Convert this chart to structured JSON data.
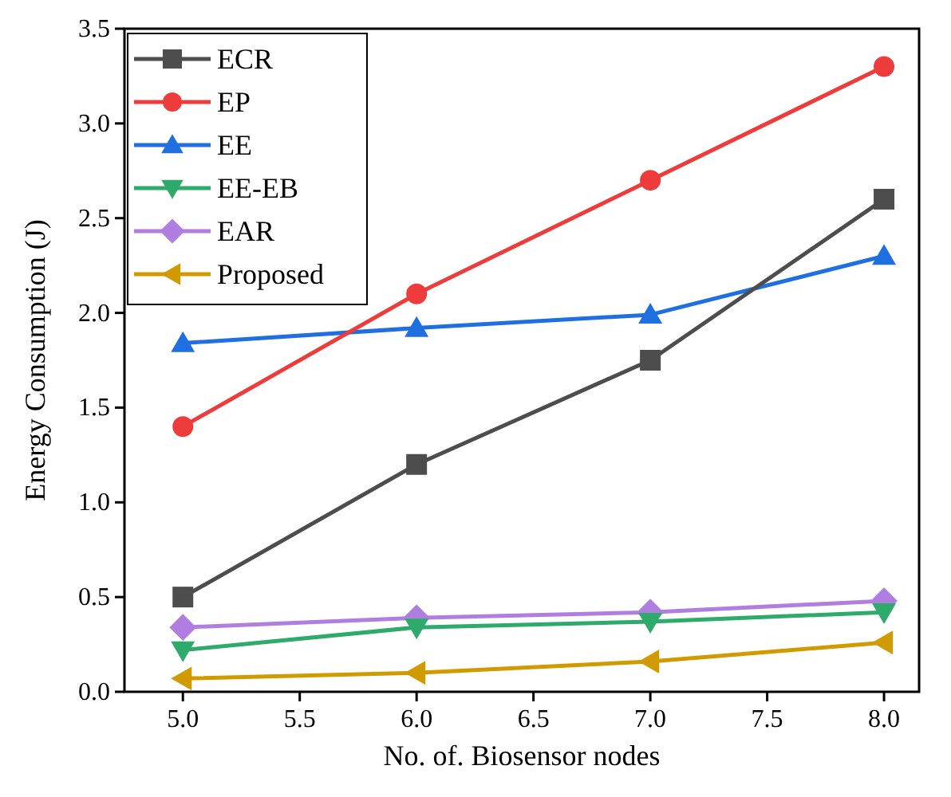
{
  "chart_data": {
    "type": "line",
    "xlabel": "No. of. Biosensor nodes",
    "ylabel": "Energy Consumption (J)",
    "x": [
      5,
      6,
      7,
      8
    ],
    "series": [
      {
        "name": "ECR",
        "color": "#4d4d4d",
        "marker": "square",
        "values": [
          0.5,
          1.2,
          1.75,
          2.6
        ]
      },
      {
        "name": "EP",
        "color": "#ee3b3b",
        "marker": "circle",
        "values": [
          1.4,
          2.1,
          2.7,
          3.3
        ]
      },
      {
        "name": "EE",
        "color": "#1f6fe0",
        "marker": "triangle",
        "values": [
          1.84,
          1.92,
          1.99,
          2.3
        ]
      },
      {
        "name": "EE-EB",
        "color": "#2eaa6a",
        "marker": "triangle-down",
        "values": [
          0.22,
          0.34,
          0.37,
          0.42
        ]
      },
      {
        "name": "EAR",
        "color": "#b07ee0",
        "marker": "diamond",
        "values": [
          0.34,
          0.39,
          0.42,
          0.48
        ]
      },
      {
        "name": "Proposed",
        "color": "#d09a00",
        "marker": "triangle-left",
        "values": [
          0.07,
          0.1,
          0.16,
          0.26
        ]
      }
    ],
    "xlim": [
      4.75,
      8.15
    ],
    "xticks": [
      {
        "value": 5,
        "label": "5.0"
      },
      {
        "value": 5.5,
        "label": "5.5"
      },
      {
        "value": 6,
        "label": "6.0"
      },
      {
        "value": 6.5,
        "label": "6.5"
      },
      {
        "value": 7,
        "label": "7.0"
      },
      {
        "value": 7.5,
        "label": "7.5"
      },
      {
        "value": 8,
        "label": "8.0"
      }
    ],
    "ylim": [
      0,
      3.5
    ],
    "yticks": [
      {
        "value": 0,
        "label": "0.0"
      },
      {
        "value": 0.5,
        "label": "0.5"
      },
      {
        "value": 1,
        "label": "1.0"
      },
      {
        "value": 1.5,
        "label": "1.5"
      },
      {
        "value": 2,
        "label": "2.0"
      },
      {
        "value": 2.5,
        "label": "2.5"
      },
      {
        "value": 3,
        "label": "3.0"
      },
      {
        "value": 3.5,
        "label": "3.5"
      }
    ],
    "grid": false,
    "legend": "top left"
  }
}
